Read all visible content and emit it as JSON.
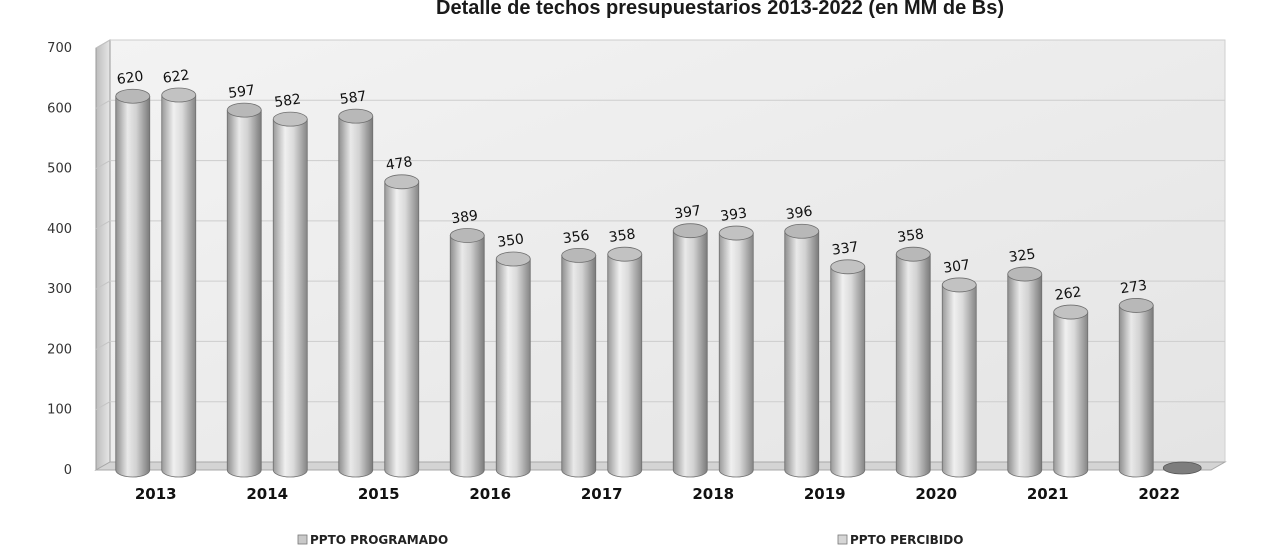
{
  "chart_data": {
    "type": "bar",
    "title": "Detalle de techos presupuestarios 2013-2022 (en MM de Bs)",
    "categories": [
      "2013",
      "2014",
      "2015",
      "2016",
      "2017",
      "2018",
      "2019",
      "2020",
      "2021",
      "2022"
    ],
    "series": [
      {
        "name": "PPTO PROGRAMADO",
        "values": [
          620,
          597,
          587,
          389,
          356,
          397,
          396,
          358,
          325,
          273
        ],
        "color": "#c9c9c9"
      },
      {
        "name": "PPTO PERCIBIDO",
        "values": [
          622,
          582,
          478,
          350,
          358,
          393,
          337,
          307,
          262,
          0
        ],
        "color": "#d6d6d6"
      }
    ],
    "yticks": [
      0,
      100,
      200,
      300,
      400,
      500,
      600,
      700
    ],
    "ylim": [
      0,
      700
    ],
    "grid": true,
    "legend": "bottom"
  }
}
